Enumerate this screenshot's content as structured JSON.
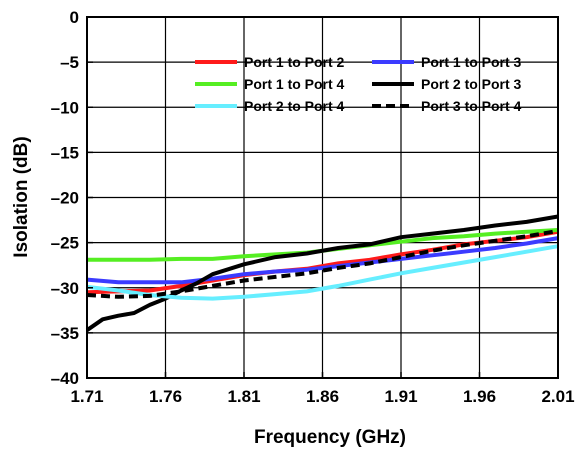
{
  "chart_data": {
    "type": "line",
    "title": "",
    "xlabel": "Frequency (GHz)",
    "ylabel": "Isolation (dB)",
    "xlim": [
      1.71,
      2.01
    ],
    "ylim": [
      -40,
      0
    ],
    "xticks": [
      "1.71",
      "1.76",
      "1.81",
      "1.86",
      "1.91",
      "1.96",
      "2.01"
    ],
    "yticks": [
      "0",
      "–5",
      "–10",
      "–15",
      "–20",
      "–25",
      "–30",
      "–35",
      "–40"
    ],
    "grid": true,
    "legend_position": "top-right",
    "series": [
      {
        "name": "Port 1 to Port 2",
        "color": "#ff1a1a",
        "dash": "solid",
        "x": [
          1.71,
          1.73,
          1.75,
          1.77,
          1.79,
          1.81,
          1.83,
          1.85,
          1.87,
          1.89,
          1.91,
          1.93,
          1.95,
          1.97,
          1.99,
          2.01
        ],
        "y": [
          -30.5,
          -30.4,
          -30.3,
          -29.8,
          -29.2,
          -28.6,
          -28.2,
          -27.9,
          -27.3,
          -26.9,
          -26.3,
          -25.8,
          -25.2,
          -24.8,
          -24.4,
          -23.8
        ]
      },
      {
        "name": "Port 1 to Port 3",
        "color": "#3b3bff",
        "dash": "solid",
        "x": [
          1.71,
          1.73,
          1.75,
          1.77,
          1.79,
          1.81,
          1.83,
          1.85,
          1.87,
          1.89,
          1.91,
          1.93,
          1.95,
          1.97,
          1.99,
          2.01
        ],
        "y": [
          -29.1,
          -29.4,
          -29.4,
          -29.4,
          -29.0,
          -28.5,
          -28.2,
          -28.0,
          -27.6,
          -27.2,
          -26.8,
          -26.4,
          -26.0,
          -25.6,
          -25.1,
          -24.5
        ]
      },
      {
        "name": "Port 1 to Port 4",
        "color": "#55ee22",
        "dash": "solid",
        "x": [
          1.71,
          1.73,
          1.75,
          1.77,
          1.79,
          1.81,
          1.83,
          1.85,
          1.87,
          1.89,
          1.91,
          1.93,
          1.95,
          1.97,
          1.99,
          2.01
        ],
        "y": [
          -26.9,
          -26.9,
          -26.9,
          -26.8,
          -26.8,
          -26.5,
          -26.3,
          -26.1,
          -25.7,
          -25.3,
          -24.9,
          -24.5,
          -24.3,
          -24.0,
          -23.8,
          -23.6
        ]
      },
      {
        "name": "Port 2 to Port 3",
        "color": "#000000",
        "dash": "solid",
        "x": [
          1.71,
          1.72,
          1.73,
          1.74,
          1.75,
          1.76,
          1.77,
          1.78,
          1.79,
          1.81,
          1.83,
          1.85,
          1.87,
          1.89,
          1.91,
          1.93,
          1.95,
          1.97,
          1.99,
          2.01
        ],
        "y": [
          -34.7,
          -33.5,
          -33.1,
          -32.8,
          -31.9,
          -31.2,
          -30.3,
          -29.5,
          -28.5,
          -27.4,
          -26.6,
          -26.2,
          -25.6,
          -25.2,
          -24.4,
          -24.0,
          -23.6,
          -23.1,
          -22.7,
          -22.1
        ]
      },
      {
        "name": "Port 2 to Port 4",
        "color": "#66eeff",
        "dash": "solid",
        "x": [
          1.71,
          1.73,
          1.75,
          1.77,
          1.79,
          1.81,
          1.83,
          1.85,
          1.87,
          1.89,
          1.91,
          1.93,
          1.95,
          1.97,
          1.99,
          2.01
        ],
        "y": [
          -29.9,
          -30.3,
          -30.8,
          -31.1,
          -31.2,
          -31.0,
          -30.7,
          -30.4,
          -29.8,
          -29.1,
          -28.4,
          -27.8,
          -27.2,
          -26.6,
          -26.0,
          -25.4
        ]
      },
      {
        "name": "Port 3 to Port 4",
        "color": "#000000",
        "dash": "dashed",
        "x": [
          1.71,
          1.73,
          1.75,
          1.77,
          1.79,
          1.81,
          1.83,
          1.85,
          1.87,
          1.89,
          1.91,
          1.93,
          1.95,
          1.97,
          1.99,
          2.01
        ],
        "y": [
          -30.8,
          -31.0,
          -30.9,
          -30.4,
          -29.8,
          -29.2,
          -28.8,
          -28.4,
          -27.8,
          -27.3,
          -26.6,
          -25.9,
          -25.3,
          -24.8,
          -24.3,
          -23.7
        ]
      }
    ]
  }
}
